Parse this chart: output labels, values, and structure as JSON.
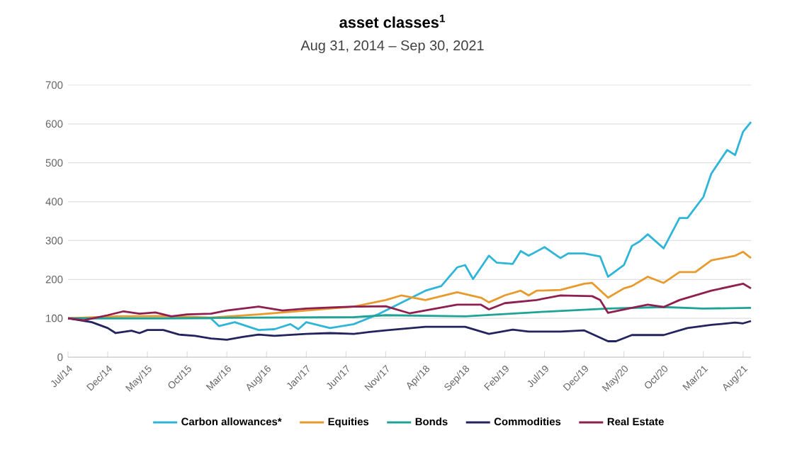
{
  "chart_data": {
    "type": "line",
    "title": "asset classes$^{1}$",
    "subtitle": "Aug 31, 2014 – Sep 30, 2021",
    "xlim": [
      "2014-07",
      "2021-09"
    ],
    "xticks": [
      {
        "value": "2014-07",
        "label": "Jul/14"
      },
      {
        "value": "2014-12",
        "label": "Dec/14"
      },
      {
        "value": "2015-05",
        "label": "May/15"
      },
      {
        "value": "2015-10",
        "label": "Oct/15"
      },
      {
        "value": "2016-03",
        "label": "Mar/16"
      },
      {
        "value": "2016-08",
        "label": "Aug/16"
      },
      {
        "value": "2017-01",
        "label": "Jan/17"
      },
      {
        "value": "2017-06",
        "label": "Jun/17"
      },
      {
        "value": "2017-11",
        "label": "Nov/17"
      },
      {
        "value": "2018-04",
        "label": "Apr/18"
      },
      {
        "value": "2018-09",
        "label": "Sep/18"
      },
      {
        "value": "2019-02",
        "label": "Feb/19"
      },
      {
        "value": "2019-07",
        "label": "Jul/19"
      },
      {
        "value": "2019-12",
        "label": "Dec/19"
      },
      {
        "value": "2020-05",
        "label": "May/20"
      },
      {
        "value": "2020-10",
        "label": "Oct/20"
      },
      {
        "value": "2021-03",
        "label": "Mar/21"
      },
      {
        "value": "2021-08",
        "label": "Aug/21"
      }
    ],
    "ylim": [
      0,
      700
    ],
    "yticks": [
      0,
      100,
      200,
      300,
      400,
      500,
      600,
      700
    ],
    "grid": "y",
    "legend": "bottom",
    "series": [
      {
        "name": "Carbon allowances*",
        "color": "#2fb5d8",
        "x": [
          "2014-07",
          "2015-01",
          "2015-07",
          "2016-01",
          "2016-02",
          "2016-04",
          "2016-07",
          "2016-09",
          "2016-11",
          "2016-12",
          "2017-01",
          "2017-04",
          "2017-07",
          "2017-10",
          "2018-04",
          "2018-06",
          "2018-08",
          "2018-09",
          "2018-10",
          "2018-12",
          "2019-01",
          "2019-03",
          "2019-04",
          "2019-05",
          "2019-07",
          "2019-09",
          "2019-10",
          "2019-12",
          "2020-02",
          "2020-03",
          "2020-05",
          "2020-06",
          "2020-07",
          "2020-08",
          "2020-10",
          "2020-12",
          "2021-01",
          "2021-03",
          "2021-04",
          "2021-06",
          "2021-07",
          "2021-08",
          "2021-09"
        ],
        "values": [
          100,
          100,
          100,
          100,
          80,
          90,
          70,
          72,
          85,
          72,
          90,
          75,
          85,
          110,
          171,
          183,
          231,
          237,
          201,
          261,
          243,
          240,
          273,
          261,
          283,
          255,
          267,
          267,
          259,
          207,
          237,
          286,
          298,
          316,
          280,
          358,
          358,
          412,
          472,
          533,
          520,
          580,
          605
        ]
      },
      {
        "name": "Equities",
        "color": "#e89a2c",
        "x": [
          "2014-07",
          "2015-01",
          "2015-07",
          "2016-01",
          "2016-07",
          "2017-01",
          "2017-07",
          "2017-11",
          "2018-01",
          "2018-04",
          "2018-08",
          "2018-11",
          "2018-12",
          "2019-02",
          "2019-04",
          "2019-05",
          "2019-06",
          "2019-09",
          "2019-12",
          "2020-01",
          "2020-03",
          "2020-05",
          "2020-06",
          "2020-08",
          "2020-10",
          "2020-12",
          "2021-02",
          "2021-04",
          "2021-07",
          "2021-08",
          "2021-09"
        ],
        "values": [
          100,
          105,
          106,
          102,
          110,
          120,
          130,
          147,
          159,
          147,
          167,
          153,
          141,
          159,
          171,
          159,
          171,
          173,
          189,
          191,
          153,
          177,
          183,
          207,
          191,
          219,
          219,
          249,
          261,
          271,
          255
        ]
      },
      {
        "name": "Bonds",
        "color": "#1fa397",
        "x": [
          "2014-07",
          "2015-07",
          "2016-07",
          "2017-07",
          "2017-11",
          "2018-09",
          "2019-07",
          "2020-03",
          "2020-10",
          "2021-03",
          "2021-09"
        ],
        "values": [
          100,
          100,
          102,
          103,
          108,
          105,
          117,
          125,
          129,
          125,
          127
        ]
      },
      {
        "name": "Commodities",
        "color": "#23235e",
        "x": [
          "2014-07",
          "2014-10",
          "2014-12",
          "2015-01",
          "2015-03",
          "2015-04",
          "2015-05",
          "2015-07",
          "2015-09",
          "2015-11",
          "2016-01",
          "2016-03",
          "2016-05",
          "2016-07",
          "2016-09",
          "2017-01",
          "2017-04",
          "2017-07",
          "2017-09",
          "2017-11",
          "2018-04",
          "2018-06",
          "2018-09",
          "2018-12",
          "2019-03",
          "2019-05",
          "2019-09",
          "2019-12",
          "2020-03",
          "2020-04",
          "2020-06",
          "2020-10",
          "2021-01",
          "2021-04",
          "2021-07",
          "2021-08",
          "2021-09"
        ],
        "values": [
          100,
          90,
          75,
          62,
          68,
          62,
          70,
          70,
          58,
          55,
          48,
          45,
          52,
          58,
          55,
          60,
          62,
          60,
          65,
          69,
          78,
          78,
          78,
          60,
          71,
          66,
          66,
          69,
          41,
          41,
          57,
          57,
          75,
          83,
          89,
          87,
          93
        ]
      },
      {
        "name": "Real Estate",
        "color": "#8e1f4f",
        "x": [
          "2014-07",
          "2014-09",
          "2014-12",
          "2015-02",
          "2015-04",
          "2015-06",
          "2015-08",
          "2015-10",
          "2016-01",
          "2016-03",
          "2016-07",
          "2016-10",
          "2017-01",
          "2017-04",
          "2017-07",
          "2017-11",
          "2018-02",
          "2018-08",
          "2018-11",
          "2018-12",
          "2019-02",
          "2019-06",
          "2019-09",
          "2020-01",
          "2020-02",
          "2020-03",
          "2020-06",
          "2020-08",
          "2020-10",
          "2020-12",
          "2021-04",
          "2021-08",
          "2021-09"
        ],
        "values": [
          100,
          95,
          108,
          118,
          112,
          115,
          105,
          110,
          112,
          120,
          130,
          120,
          125,
          128,
          130,
          131,
          113,
          135,
          135,
          123,
          139,
          147,
          159,
          157,
          147,
          114,
          127,
          135,
          129,
          147,
          171,
          189,
          177
        ]
      }
    ]
  }
}
